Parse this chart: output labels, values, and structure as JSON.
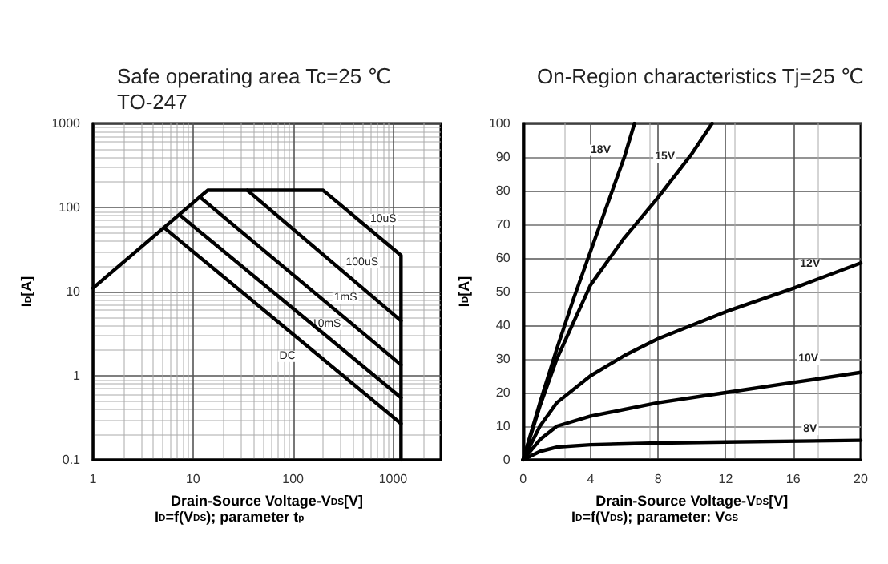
{
  "chart_data": [
    {
      "type": "line",
      "title": "Safe operating area Tc=25 ℃",
      "subtitle": "TO-247",
      "xlabel": "Drain-Source Voltage-V$_{DS}$[V]",
      "ylabel": "I$_{D}$[A]",
      "log": "xy",
      "xlim": [
        1,
        3000
      ],
      "ylim": [
        0.1,
        1000
      ],
      "xticks": [
        1,
        10,
        100,
        1000
      ],
      "yticks": [
        0.1,
        1,
        10,
        100,
        1000
      ],
      "grid": true,
      "marker": "none",
      "line_style": "solid",
      "series": [
        {
          "color": "#000000",
          "x": [
            1,
            14,
            200,
            1200,
            1200
          ],
          "values": [
            11,
            160,
            160,
            27,
            0.1
          ]
        },
        {
          "color": "#000000",
          "x": [
            35,
            1200
          ],
          "values": [
            160,
            4.5
          ]
        },
        {
          "color": "#000000",
          "x": [
            12,
            1200
          ],
          "values": [
            130,
            1.35
          ]
        },
        {
          "color": "#000000",
          "x": [
            7.5,
            1200
          ],
          "values": [
            80,
            0.55
          ]
        },
        {
          "color": "#000000",
          "x": [
            5.2,
            1200
          ],
          "values": [
            57,
            0.27
          ]
        }
      ],
      "annotations": [
        {
          "text": "10uS",
          "x": 800,
          "y": 72
        },
        {
          "text": "100uS",
          "x": 490,
          "y": 22
        },
        {
          "text": "1mS",
          "x": 335,
          "y": 8.3
        },
        {
          "text": "10mS",
          "x": 215,
          "y": 4.1
        },
        {
          "text": "DC",
          "x": 88,
          "y": 1.7
        },
        "I$_{D}$=f(V$_{DS}$); parameter t$_{p}$"
      ]
    },
    {
      "type": "line",
      "title": "On-Region characteristics Tj=25 ℃",
      "xlabel": "Drain-Source Voltage-V$_{DS}$[V]",
      "ylabel": "I$_{D}$[A]",
      "xlim": [
        0,
        20
      ],
      "ylim": [
        0,
        100
      ],
      "xticks": [
        0,
        4,
        8,
        12,
        16,
        20
      ],
      "yticks": [
        0,
        10,
        20,
        30,
        40,
        50,
        60,
        70,
        80,
        90,
        100
      ],
      "grid": true,
      "marker": "none",
      "line_style": "solid",
      "series": [
        {
          "color": "#000000",
          "x": [
            0,
            1,
            2,
            3,
            4,
            5,
            6,
            6.6
          ],
          "values": [
            0,
            17,
            33,
            48,
            62,
            76,
            90,
            100
          ]
        },
        {
          "color": "#000000",
          "x": [
            0,
            1,
            2,
            4,
            6,
            8,
            10,
            11.2
          ],
          "values": [
            0,
            16,
            30,
            52,
            66,
            78,
            91,
            100
          ]
        },
        {
          "color": "#000000",
          "x": [
            0,
            1,
            2,
            4,
            6,
            8,
            12,
            16,
            20
          ],
          "values": [
            0,
            10,
            17,
            25,
            31,
            36,
            44,
            51,
            58.5
          ]
        },
        {
          "color": "#000000",
          "x": [
            0,
            1,
            2,
            4,
            8,
            12,
            16,
            20
          ],
          "values": [
            0,
            6,
            10,
            13,
            17,
            20,
            23,
            26
          ]
        },
        {
          "color": "#000000",
          "x": [
            0,
            1,
            2,
            4,
            8,
            12,
            20
          ],
          "values": [
            0,
            2.5,
            3.8,
            4.5,
            5,
            5.3,
            5.8
          ]
        }
      ],
      "annotations": [
        {
          "text": "18V",
          "x": 4.6,
          "y": 92
        },
        {
          "text": "15V",
          "x": 8.4,
          "y": 90
        },
        {
          "text": "12V",
          "x": 17,
          "y": 58
        },
        {
          "text": "10V",
          "x": 16.9,
          "y": 30
        },
        {
          "text": "8V",
          "x": 17,
          "y": 9
        },
        "I$_{D}$=f(V$_{DS}$); parameter: V$_{GS}$"
      ]
    }
  ]
}
